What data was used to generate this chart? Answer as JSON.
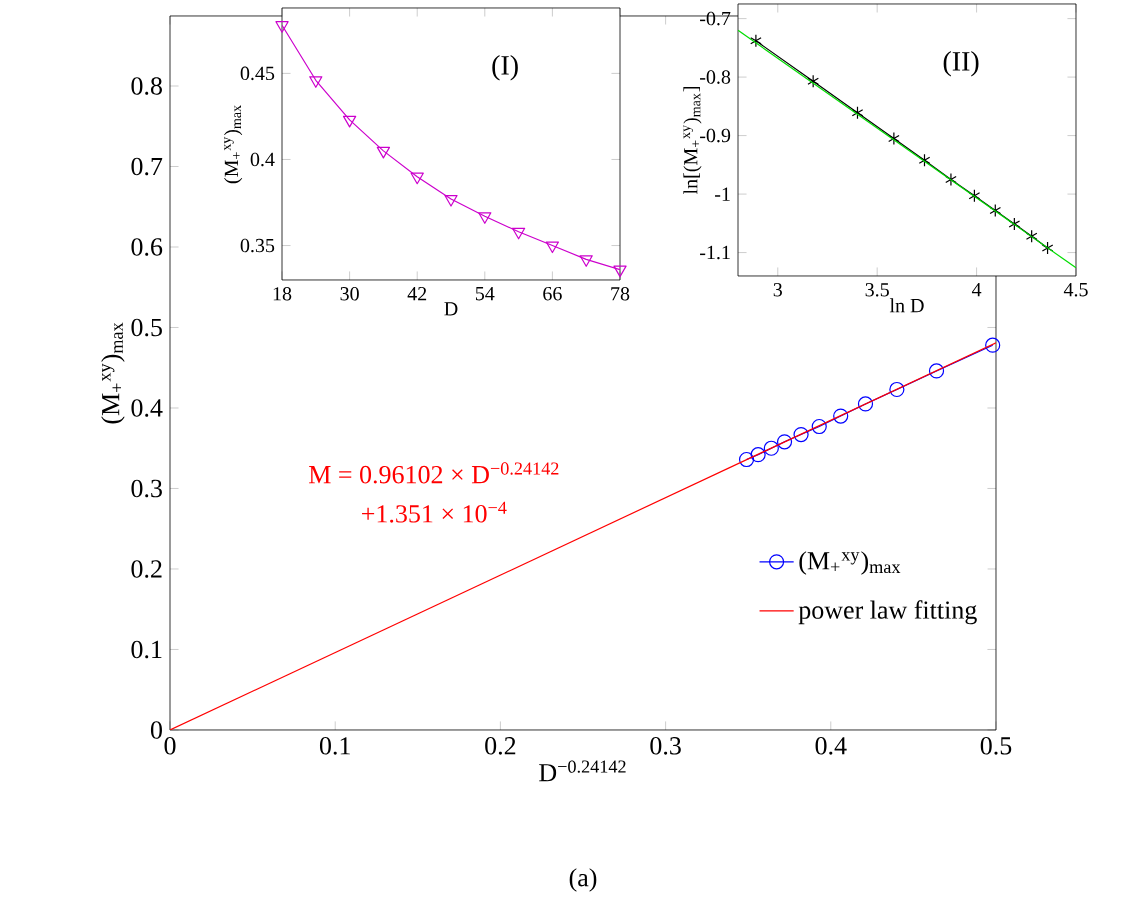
{
  "chart_data": [
    {
      "type": "line",
      "xlabel": "D$^{−0.24142}$",
      "ylabel": "(M$_{+}$$^{xy}$)$_{max}$",
      "xlim": [
        0,
        0.5
      ],
      "ylim": [
        0,
        0.887
      ],
      "xticks": [
        0,
        0.1,
        0.2,
        0.3,
        0.4,
        0.5
      ],
      "yticks": [
        0,
        0.1,
        0.2,
        0.3,
        0.4,
        0.5,
        0.6,
        0.7,
        0.8
      ],
      "legend": "bottom right",
      "annotations": [
        "M = 0.96102 × D$^{−0.24142}$",
        "+1.351 × 10$^{−4}$",
        "(a)"
      ],
      "series": [
        {
          "name": "(M$_{+}$$^{xy}$)$_{max}$",
          "color": "#0000ff",
          "marker": "circle",
          "x": [
            0.498,
            0.464,
            0.44,
            0.421,
            0.406,
            0.393,
            0.382,
            0.372,
            0.364,
            0.356,
            0.349
          ],
          "values": [
            0.478,
            0.446,
            0.423,
            0.405,
            0.39,
            0.377,
            0.367,
            0.358,
            0.35,
            0.342,
            0.336
          ]
        },
        {
          "name": "power law fitting",
          "color": "#ff0000",
          "marker": "none",
          "x": [
            0,
            0.5
          ],
          "values": [
            0,
            0.481
          ]
        }
      ]
    },
    {
      "type": "line",
      "title": "(I)",
      "xlabel": "D",
      "ylabel": "(M$_{+}$$^{xy}$)$_{max}$",
      "xlim": [
        18,
        78
      ],
      "ylim": [
        0.33,
        0.488
      ],
      "xticks": [
        18,
        30,
        42,
        54,
        66,
        78
      ],
      "yticks": [
        0.35,
        0.4,
        0.45
      ],
      "series": [
        {
          "color": "#cc00cc",
          "marker": "triangle",
          "x": [
            18,
            24,
            30,
            36,
            42,
            48,
            54,
            60,
            66,
            72,
            78
          ],
          "values": [
            0.478,
            0.446,
            0.423,
            0.405,
            0.39,
            0.377,
            0.367,
            0.358,
            0.35,
            0.342,
            0.336
          ]
        }
      ]
    },
    {
      "type": "line",
      "title": "(II)",
      "xlabel": "ln D",
      "ylabel": "ln[(M$_{+}$$^{xy}$)$_{max}$]",
      "xlim": [
        2.8,
        4.5
      ],
      "ylim": [
        -1.14,
        -0.675
      ],
      "xticks": [
        3,
        3.5,
        4,
        4.5
      ],
      "yticks": [
        -0.7,
        -0.8,
        -0.9,
        -1,
        -1.1
      ],
      "series": [
        {
          "color": "#000000",
          "marker": "cross",
          "x": [
            2.89,
            3.178,
            3.401,
            3.584,
            3.738,
            3.871,
            3.989,
            4.094,
            4.19,
            4.277,
            4.357
          ],
          "values": [
            -0.738,
            -0.807,
            -0.861,
            -0.905,
            -0.942,
            -0.975,
            -1.003,
            -1.028,
            -1.051,
            -1.072,
            -1.092
          ]
        },
        {
          "color": "#00dd00",
          "marker": "none",
          "x": [
            2.8,
            4.5
          ],
          "values": [
            -0.72,
            -1.126
          ]
        }
      ]
    }
  ]
}
